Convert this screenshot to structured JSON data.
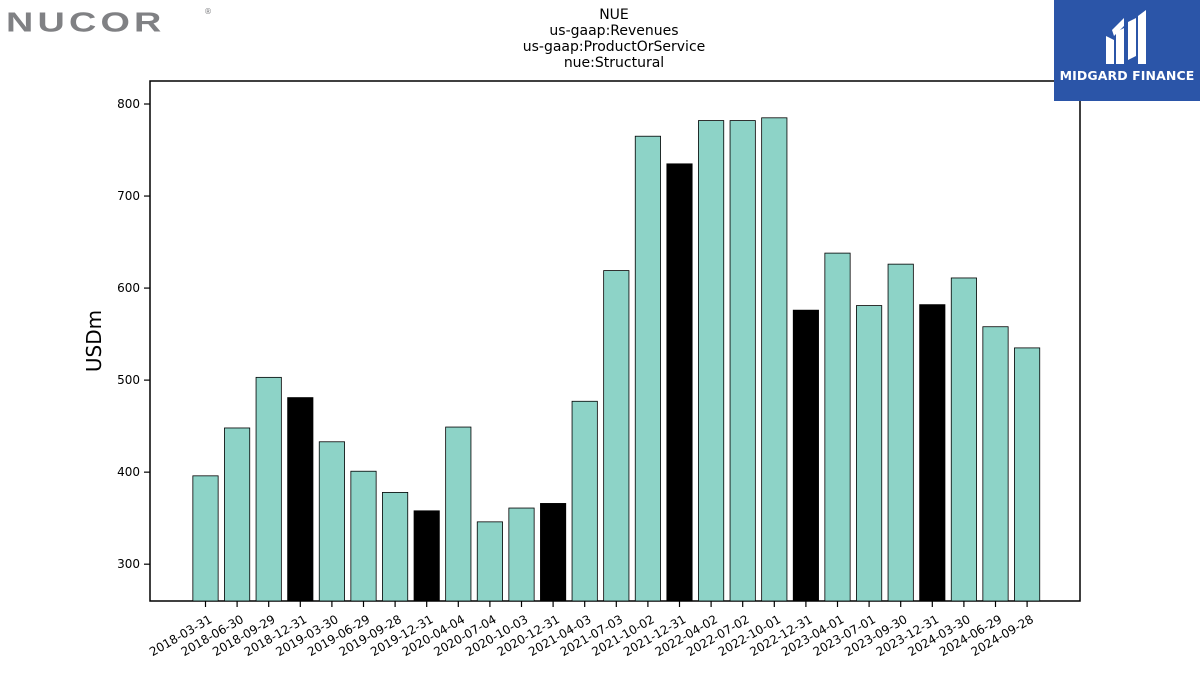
{
  "header": {
    "brand_logo_text": "NUCOR",
    "brand_logo_mark": "®",
    "watermark_text": "MIDGARD FINANCE"
  },
  "colors": {
    "bar_default": "#8dd3c7",
    "bar_q4": "#000000",
    "bar_edge": "#000000",
    "nucor_logo": "#808184",
    "midgard_bg": "#2b55a8",
    "midgard_fg": "#ffffff"
  },
  "chart_data": {
    "type": "bar",
    "title_lines": [
      "NUE",
      "us-gaap:Revenues",
      "us-gaap:ProductOrService",
      "nue:Structural"
    ],
    "xlabel": "",
    "ylabel": "USDm",
    "ylim": [
      260,
      825
    ],
    "yticks": [
      300,
      400,
      500,
      600,
      700,
      800
    ],
    "grid": false,
    "legend": "none",
    "categories": [
      "2018-03-31",
      "2018-06-30",
      "2018-09-29",
      "2018-12-31",
      "2019-03-30",
      "2019-06-29",
      "2019-09-28",
      "2019-12-31",
      "2020-04-04",
      "2020-07-04",
      "2020-10-03",
      "2020-12-31",
      "2021-04-03",
      "2021-07-03",
      "2021-10-02",
      "2021-12-31",
      "2022-04-02",
      "2022-07-02",
      "2022-10-01",
      "2022-12-31",
      "2023-04-01",
      "2023-07-01",
      "2023-09-30",
      "2023-12-31",
      "2024-03-30",
      "2024-06-29",
      "2024-09-28"
    ],
    "values": [
      396,
      448,
      503,
      481,
      433,
      401,
      378,
      358,
      449,
      346,
      361,
      366,
      477,
      619,
      765,
      735,
      782,
      782,
      785,
      576,
      638,
      581,
      626,
      582,
      611,
      558,
      535
    ],
    "highlight_year_end": [
      false,
      false,
      false,
      true,
      false,
      false,
      false,
      true,
      false,
      false,
      false,
      true,
      false,
      false,
      false,
      true,
      false,
      false,
      false,
      true,
      false,
      false,
      false,
      true,
      false,
      false,
      false
    ]
  }
}
